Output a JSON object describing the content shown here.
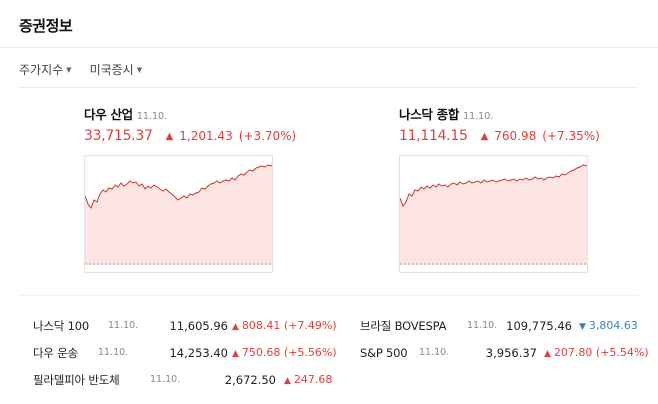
{
  "title": "증권정보",
  "filters": [
    {
      "label": "주가지수",
      "icon": "caret-down-icon"
    },
    {
      "label": "미국증시",
      "icon": "caret-down-icon"
    }
  ],
  "cards": [
    {
      "name": "다우 산업",
      "date": "11.10.",
      "price": "33,715.37",
      "change": "1,201.43",
      "rate": "(+3.70%)",
      "direction": "up"
    },
    {
      "name": "나스닥 종합",
      "date": "11.10.",
      "price": "11,114.15",
      "change": "760.98",
      "rate": "(+7.35%)",
      "direction": "up"
    }
  ],
  "list": [
    {
      "name": "나스닥 100",
      "date": "11.10.",
      "price": "11,605.96",
      "change": "808.41",
      "rate": "(+7.49%)",
      "direction": "up"
    },
    {
      "name": "다우 운송",
      "date": "11.10.",
      "price": "14,253.40",
      "change": "750.68",
      "rate": "(+5.56%)",
      "direction": "up"
    },
    {
      "name": "필라델피아 반도체",
      "date": "11.10.",
      "price": "2,672.50",
      "change": "247.68",
      "rate": "",
      "direction": "up"
    },
    {
      "name": "브라질 BOVESPA",
      "date": "11.10.",
      "price": "109,775.46",
      "change": "3,804.63",
      "rate": "",
      "direction": "down"
    },
    {
      "name": "S&P 500",
      "date": "11.10.",
      "price": "3,956.37",
      "change": "207.80",
      "rate": "(+5.54%)",
      "direction": "up"
    }
  ],
  "colors": {
    "up": "#e03f3f",
    "down": "#3b82c4",
    "chart_line": "#c0392b",
    "chart_fill": "#fde5e3"
  }
}
